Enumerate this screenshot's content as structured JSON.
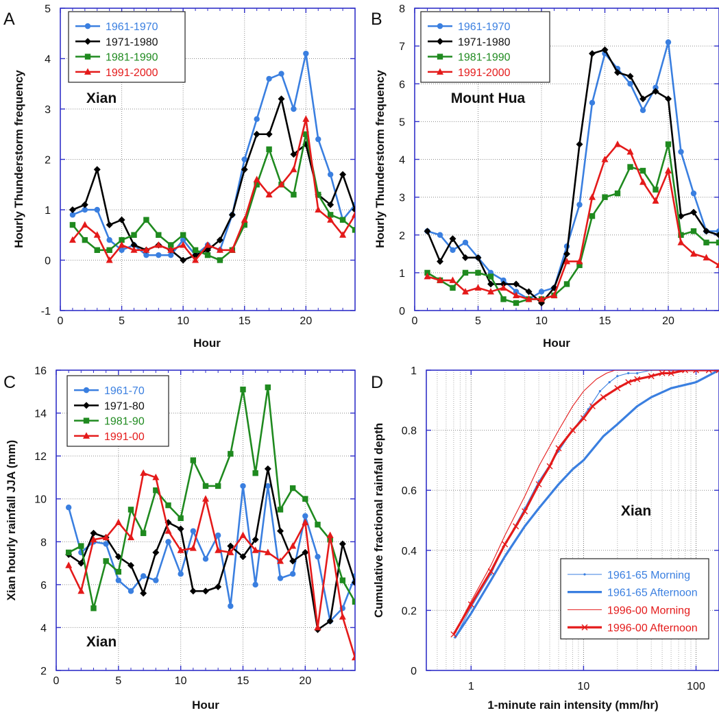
{
  "chart_data": [
    {
      "type": "line",
      "panel_label": "A",
      "station_label": "Xian",
      "xlabel": "Hour",
      "ylabel": "Hourly Thunderstorm frequency",
      "xlim": [
        0,
        24
      ],
      "ylim": [
        -1,
        5
      ],
      "xticks": [
        0,
        5,
        10,
        15,
        20
      ],
      "yticks": [
        -1,
        0,
        1,
        2,
        3,
        4,
        5
      ],
      "grid": true,
      "legend_position": "top-left",
      "x": [
        1,
        2,
        3,
        4,
        5,
        6,
        7,
        8,
        9,
        10,
        11,
        12,
        13,
        14,
        15,
        16,
        17,
        18,
        19,
        20,
        21,
        22,
        23,
        24
      ],
      "series": [
        {
          "name": "1961-1970",
          "color": "#3a7fe0",
          "marker": "circle",
          "values": [
            0.9,
            1.0,
            1.0,
            0.4,
            0.2,
            0.3,
            0.1,
            0.1,
            0.1,
            0.4,
            0.1,
            0.3,
            0.2,
            0.9,
            2.0,
            2.8,
            3.6,
            3.7,
            3.0,
            4.1,
            2.4,
            1.7,
            0.8,
            1.1
          ]
        },
        {
          "name": "1971-1980",
          "color": "#000000",
          "marker": "diamond",
          "values": [
            1.0,
            1.1,
            1.8,
            0.7,
            0.8,
            0.3,
            0.2,
            0.3,
            0.2,
            0.0,
            0.1,
            0.2,
            0.4,
            0.9,
            1.8,
            2.5,
            2.5,
            3.2,
            2.1,
            2.3,
            1.3,
            1.1,
            1.7,
            1.0
          ]
        },
        {
          "name": "1981-1990",
          "color": "#1f8a1f",
          "marker": "square",
          "values": [
            0.7,
            0.4,
            0.2,
            0.2,
            0.4,
            0.5,
            0.8,
            0.5,
            0.3,
            0.5,
            0.2,
            0.1,
            0.0,
            0.2,
            0.7,
            1.5,
            2.2,
            1.5,
            1.3,
            2.5,
            1.3,
            0.9,
            0.8,
            0.6
          ]
        },
        {
          "name": "1991-2000",
          "color": "#e41a1a",
          "marker": "triangle",
          "values": [
            0.4,
            0.7,
            0.5,
            0.0,
            0.3,
            0.2,
            0.2,
            0.3,
            0.2,
            0.3,
            0.0,
            0.3,
            0.2,
            0.2,
            0.8,
            1.6,
            1.3,
            1.5,
            1.8,
            2.8,
            1.0,
            0.8,
            0.5,
            0.9
          ]
        }
      ]
    },
    {
      "type": "line",
      "panel_label": "B",
      "station_label": "Mount Hua",
      "xlabel": "Hour",
      "ylabel": "Hourly Thunderstorm frequency",
      "xlim": [
        0,
        24
      ],
      "ylim": [
        0,
        8
      ],
      "xticks": [
        0,
        5,
        10,
        15,
        20
      ],
      "yticks": [
        0,
        1,
        2,
        3,
        4,
        5,
        6,
        7,
        8
      ],
      "grid": true,
      "legend_position": "top-left",
      "x": [
        1,
        2,
        3,
        4,
        5,
        6,
        7,
        8,
        9,
        10,
        11,
        12,
        13,
        14,
        15,
        16,
        17,
        18,
        19,
        20,
        21,
        22,
        23,
        24
      ],
      "series": [
        {
          "name": "1961-1970",
          "color": "#3a7fe0",
          "marker": "circle",
          "values": [
            2.1,
            2.0,
            1.6,
            1.8,
            1.4,
            1.0,
            0.8,
            0.5,
            0.3,
            0.5,
            0.6,
            1.7,
            2.8,
            5.5,
            6.8,
            6.4,
            6.0,
            5.3,
            5.9,
            7.1,
            4.2,
            3.1,
            2.1,
            2.1
          ]
        },
        {
          "name": "1971-1980",
          "color": "#000000",
          "marker": "diamond",
          "values": [
            2.1,
            1.3,
            1.9,
            1.4,
            1.4,
            0.7,
            0.7,
            0.7,
            0.5,
            0.2,
            0.6,
            1.5,
            4.4,
            6.8,
            6.9,
            6.3,
            6.2,
            5.6,
            5.8,
            5.6,
            2.5,
            2.6,
            2.1,
            2.0
          ]
        },
        {
          "name": "1981-1990",
          "color": "#1f8a1f",
          "marker": "square",
          "values": [
            1.0,
            0.8,
            0.6,
            1.0,
            1.0,
            0.9,
            0.3,
            0.2,
            0.3,
            0.3,
            0.4,
            0.7,
            1.2,
            2.5,
            3.0,
            3.1,
            3.8,
            3.7,
            3.2,
            4.4,
            2.0,
            2.1,
            1.8,
            1.8
          ]
        },
        {
          "name": "1991-2000",
          "color": "#e41a1a",
          "marker": "triangle",
          "values": [
            0.9,
            0.8,
            0.8,
            0.5,
            0.6,
            0.5,
            0.6,
            0.4,
            0.3,
            0.3,
            0.4,
            1.3,
            1.3,
            3.0,
            4.0,
            4.4,
            4.2,
            3.4,
            2.9,
            3.7,
            1.8,
            1.5,
            1.4,
            1.2
          ]
        }
      ]
    },
    {
      "type": "line",
      "panel_label": "C",
      "station_label": "Xian",
      "xlabel": "Hour",
      "ylabel": "Xian hourly rainfall JJA (mm)",
      "xlim": [
        0,
        24
      ],
      "ylim": [
        2,
        16
      ],
      "xticks": [
        0,
        5,
        10,
        15,
        20
      ],
      "yticks": [
        2,
        4,
        6,
        8,
        10,
        12,
        14,
        16
      ],
      "grid": true,
      "legend_position": "top-left",
      "x": [
        1,
        2,
        3,
        4,
        5,
        6,
        7,
        8,
        9,
        10,
        11,
        12,
        13,
        14,
        15,
        16,
        17,
        18,
        19,
        20,
        21,
        22,
        23,
        24
      ],
      "series": [
        {
          "name": "1961-70",
          "color": "#3a7fe0",
          "marker": "circle",
          "values": [
            9.6,
            7.5,
            8.0,
            7.9,
            6.2,
            5.7,
            6.4,
            6.2,
            8.0,
            6.5,
            8.5,
            7.2,
            8.3,
            5.0,
            10.6,
            6.0,
            10.6,
            6.3,
            6.5,
            9.2,
            7.3,
            4.3,
            4.9,
            6.4
          ]
        },
        {
          "name": "1971-80",
          "color": "#000000",
          "marker": "diamond",
          "values": [
            7.4,
            7.0,
            8.4,
            8.2,
            7.3,
            6.9,
            5.6,
            7.5,
            8.9,
            8.6,
            5.7,
            5.7,
            5.9,
            7.8,
            7.3,
            8.1,
            11.4,
            8.5,
            7.1,
            7.5,
            3.9,
            4.3,
            7.9,
            6.1
          ]
        },
        {
          "name": "1981-90",
          "color": "#1f8a1f",
          "marker": "square",
          "values": [
            7.5,
            7.8,
            4.9,
            7.1,
            6.6,
            9.5,
            8.4,
            10.4,
            9.7,
            9.1,
            11.8,
            10.6,
            10.6,
            12.1,
            15.1,
            11.2,
            15.2,
            9.5,
            10.5,
            10.0,
            8.8,
            8.1,
            6.2,
            5.2
          ]
        },
        {
          "name": "1991-00",
          "color": "#e41a1a",
          "marker": "triangle",
          "values": [
            6.9,
            5.7,
            8.1,
            8.2,
            8.9,
            8.2,
            11.2,
            11.0,
            8.5,
            7.6,
            7.7,
            10.0,
            7.6,
            7.5,
            8.3,
            7.6,
            7.5,
            7.1,
            7.8,
            8.9,
            4.0,
            8.3,
            4.5,
            2.6
          ]
        }
      ]
    },
    {
      "type": "line",
      "panel_label": "D",
      "station_label": "Xian",
      "xlabel": "1-minute rain intensity (mm/hr)",
      "ylabel": "Cumulative fractional rainfall depth",
      "xscale": "log",
      "xlim": [
        0.4,
        160
      ],
      "ylim": [
        0,
        1
      ],
      "xticks": [
        1,
        10,
        100
      ],
      "yticks": [
        0,
        0.2,
        0.4,
        0.6,
        0.8,
        1
      ],
      "grid": true,
      "legend_position": "bottom-right",
      "series": [
        {
          "name": "1961-65 Morning",
          "color": "#3a7fe0",
          "style": "thin-with-small-markers",
          "x": [
            0.72,
            1,
            1.5,
            2,
            3,
            4,
            6,
            8,
            11,
            14,
            17,
            20,
            25,
            30,
            40,
            60,
            100,
            160
          ],
          "values": [
            0.11,
            0.21,
            0.32,
            0.42,
            0.54,
            0.63,
            0.73,
            0.8,
            0.87,
            0.93,
            0.96,
            0.98,
            0.99,
            0.99,
            1.0,
            1.0,
            1.0,
            1.0
          ]
        },
        {
          "name": "1961-65 Afternoon",
          "color": "#3a7fe0",
          "style": "thick",
          "x": [
            0.72,
            1,
            1.5,
            2,
            3,
            4,
            6,
            8,
            10,
            15,
            20,
            30,
            40,
            60,
            100,
            160
          ],
          "values": [
            0.11,
            0.19,
            0.3,
            0.38,
            0.48,
            0.54,
            0.62,
            0.67,
            0.7,
            0.78,
            0.82,
            0.88,
            0.91,
            0.94,
            0.96,
            1.0
          ]
        },
        {
          "name": "1996-00 Morning",
          "color": "#e41a1a",
          "style": "thin",
          "x": [
            0.7,
            1,
            1.5,
            2,
            3,
            4,
            6,
            8,
            10,
            13,
            16,
            19,
            25,
            40,
            100,
            160
          ],
          "values": [
            0.12,
            0.23,
            0.35,
            0.45,
            0.58,
            0.68,
            0.8,
            0.88,
            0.93,
            0.97,
            0.99,
            1.0,
            1.0,
            1.0,
            1.0,
            1.0
          ]
        },
        {
          "name": "1996-00 Afternoon",
          "color": "#e41a1a",
          "style": "thick-with-x-markers",
          "x": [
            0.7,
            1,
            1.5,
            2,
            2.5,
            3,
            4,
            5,
            6,
            8,
            10,
            12,
            15,
            20,
            25,
            30,
            40,
            50,
            60,
            80,
            100,
            130,
            160
          ],
          "values": [
            0.12,
            0.22,
            0.33,
            0.42,
            0.48,
            0.53,
            0.62,
            0.68,
            0.74,
            0.8,
            0.84,
            0.88,
            0.91,
            0.94,
            0.96,
            0.97,
            0.98,
            0.99,
            0.99,
            1.0,
            1.0,
            1.0,
            1.0
          ]
        }
      ]
    }
  ]
}
